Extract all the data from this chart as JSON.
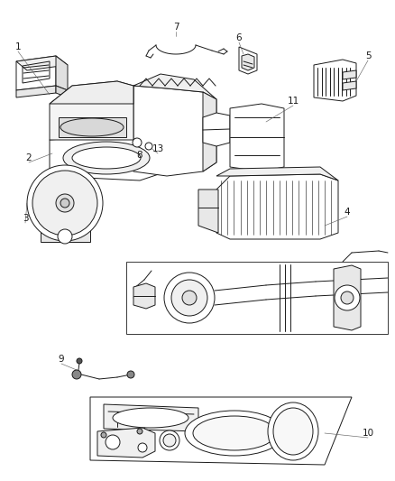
{
  "bg_color": "#ffffff",
  "line_color": "#1a1a1a",
  "lw": 0.7,
  "figsize": [
    4.38,
    5.33
  ],
  "dpi": 100,
  "label_fontsize": 7.5
}
